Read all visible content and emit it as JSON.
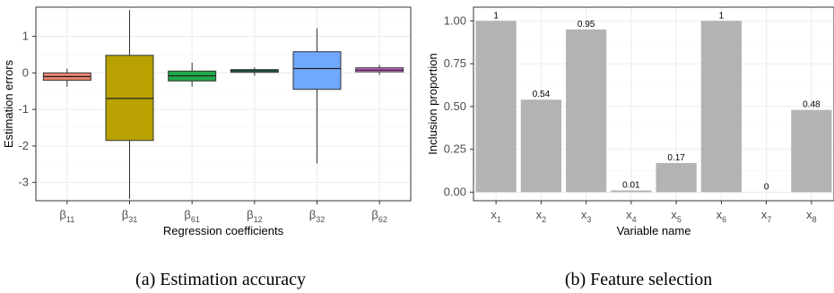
{
  "captions": {
    "left": "(a)  Estimation accuracy",
    "right": "(b)  Feature selection"
  },
  "chart_data": [
    {
      "type": "boxplot",
      "xlabel": "Regression coefficients",
      "ylabel": "Estimation errors",
      "ylim": [
        -3.5,
        1.8
      ],
      "yticks": [
        -3,
        -2,
        -1,
        0,
        1
      ],
      "grid": true,
      "categories": [
        {
          "base": "β",
          "sub": "11"
        },
        {
          "base": "β",
          "sub": "31"
        },
        {
          "base": "β",
          "sub": "61"
        },
        {
          "base": "β",
          "sub": "12"
        },
        {
          "base": "β",
          "sub": "32"
        },
        {
          "base": "β",
          "sub": "62"
        }
      ],
      "boxes": [
        {
          "whisker_low": -0.38,
          "q1": -0.2,
          "median": -0.1,
          "q3": 0.0,
          "whisker_high": 0.12,
          "color": "#f0866f"
        },
        {
          "whisker_low": -3.45,
          "q1": -1.85,
          "median": -0.7,
          "q3": 0.48,
          "whisker_high": 1.72,
          "color": "#b8a100"
        },
        {
          "whisker_low": -0.38,
          "q1": -0.22,
          "median": -0.08,
          "q3": 0.05,
          "whisker_high": 0.28,
          "color": "#22a84a"
        },
        {
          "whisker_low": -0.08,
          "q1": 0.02,
          "median": 0.06,
          "q3": 0.09,
          "whisker_high": 0.15,
          "color": "#20b39b"
        },
        {
          "whisker_low": -2.48,
          "q1": -0.45,
          "median": 0.12,
          "q3": 0.58,
          "whisker_high": 1.22,
          "color": "#6ea8ff"
        },
        {
          "whisker_low": -0.05,
          "q1": 0.03,
          "median": 0.08,
          "q3": 0.14,
          "whisker_high": 0.22,
          "color": "#e06ee6"
        }
      ]
    },
    {
      "type": "bar",
      "xlabel": "Variable name",
      "ylabel": "Inclusion proportion",
      "ylim": [
        -0.05,
        1.08
      ],
      "yticks": [
        "0.00",
        "0.25",
        "0.50",
        "0.75",
        "1.00"
      ],
      "grid": true,
      "bar_color": "#b3b3b3",
      "categories": [
        {
          "base": "x",
          "sub": "1"
        },
        {
          "base": "x",
          "sub": "2"
        },
        {
          "base": "x",
          "sub": "3"
        },
        {
          "base": "x",
          "sub": "4"
        },
        {
          "base": "x",
          "sub": "5"
        },
        {
          "base": "x",
          "sub": "6"
        },
        {
          "base": "x",
          "sub": "7"
        },
        {
          "base": "x",
          "sub": "8"
        }
      ],
      "values": [
        1,
        0.54,
        0.95,
        0.01,
        0.17,
        1,
        0,
        0.48
      ],
      "labels": [
        "1",
        "0.54",
        "0.95",
        "0.01",
        "0.17",
        "1",
        "0",
        "0.48"
      ]
    }
  ]
}
